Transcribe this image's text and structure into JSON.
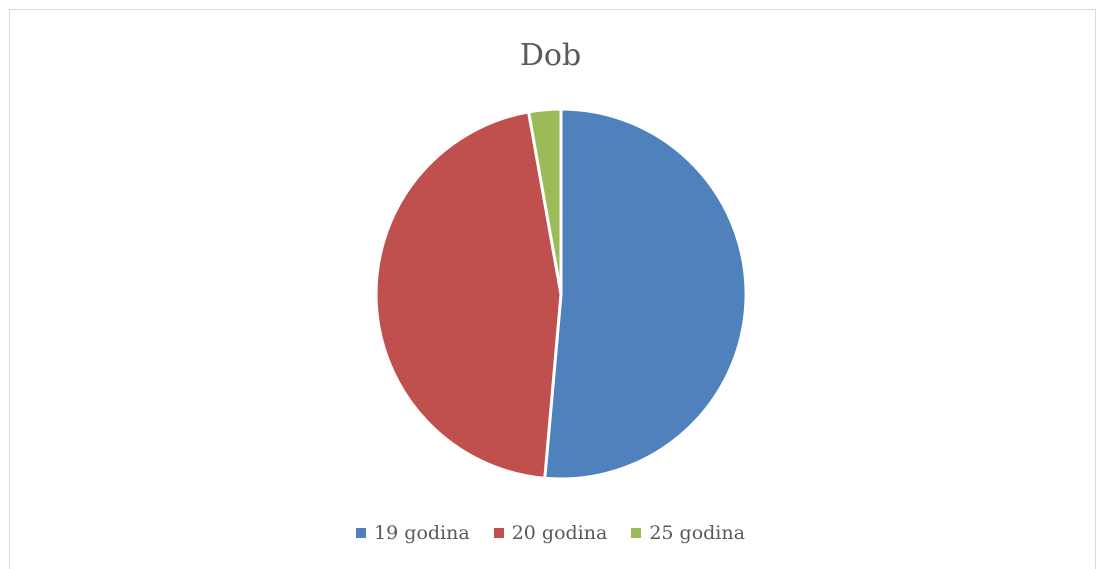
{
  "chart_data": {
    "type": "pie",
    "title": "Dob",
    "categories": [
      "19 godina",
      "20 godina",
      "25 godina"
    ],
    "values": [
      51.4,
      45.8,
      2.8
    ],
    "colors": [
      "#4f81bd",
      "#c0504d",
      "#9bbb59"
    ],
    "legend_position": "bottom"
  }
}
